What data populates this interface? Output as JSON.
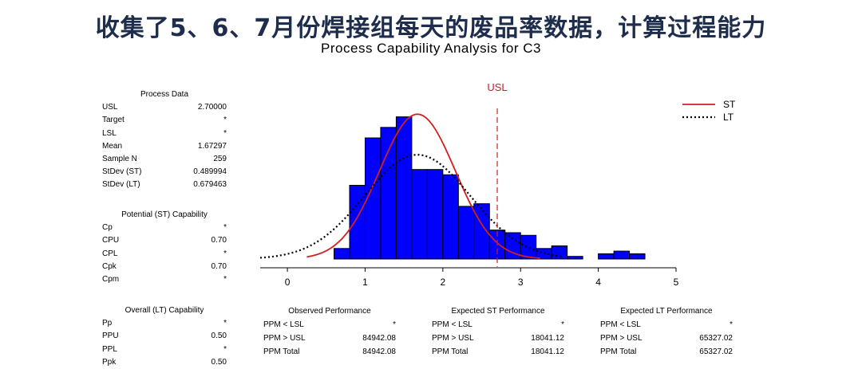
{
  "headline": "收集了5、6、7月份焊接组每天的废品率数据，计算过程能力",
  "chart_title": "Process Capability Analysis for C3",
  "colors": {
    "bar": "#0000ff",
    "bar_edge": "#000000",
    "st_curve": "#d22020",
    "usl_line": "#d22020",
    "usl_label": "#c02030",
    "lt_curve": "#000000"
  },
  "process_data": {
    "title": "Process Data",
    "rows": [
      {
        "label": "USL",
        "value": "2.70000"
      },
      {
        "label": "Target",
        "value": "*"
      },
      {
        "label": "LSL",
        "value": "*"
      },
      {
        "label": "Mean",
        "value": "1.67297"
      },
      {
        "label": "Sample N",
        "value": "259"
      },
      {
        "label": "StDev (ST)",
        "value": "0.489994"
      },
      {
        "label": "StDev (LT)",
        "value": "0.679463"
      }
    ]
  },
  "potential_capability": {
    "title": "Potential (ST) Capability",
    "rows": [
      {
        "label": "Cp",
        "value": "*"
      },
      {
        "label": "CPU",
        "value": "0.70"
      },
      {
        "label": "CPL",
        "value": "*"
      },
      {
        "label": "Cpk",
        "value": "0.70"
      },
      {
        "label": "Cpm",
        "value": "*"
      }
    ]
  },
  "overall_capability": {
    "title": "Overall (LT) Capability",
    "rows": [
      {
        "label": "Pp",
        "value": "*"
      },
      {
        "label": "PPU",
        "value": "0.50"
      },
      {
        "label": "PPL",
        "value": "*"
      },
      {
        "label": "Ppk",
        "value": "0.50"
      }
    ]
  },
  "observed_performance": {
    "title": "Observed Performance",
    "rows": [
      {
        "label": "PPM < LSL",
        "value": "*"
      },
      {
        "label": "PPM > USL",
        "value": "84942.08"
      },
      {
        "label": "PPM Total",
        "value": "84942.08"
      }
    ]
  },
  "expected_st_performance": {
    "title": "Expected ST Performance",
    "rows": [
      {
        "label": "PPM < LSL",
        "value": "*"
      },
      {
        "label": "PPM > USL",
        "value": "18041.12"
      },
      {
        "label": "PPM Total",
        "value": "18041.12"
      }
    ]
  },
  "expected_lt_performance": {
    "title": "Expected LT Performance",
    "rows": [
      {
        "label": "PPM < LSL",
        "value": "*"
      },
      {
        "label": "PPM > USL",
        "value": "65327.02"
      },
      {
        "label": "PPM Total",
        "value": "65327.02"
      }
    ]
  },
  "chart_data": {
    "type": "histogram",
    "title": "Process Capability Analysis for C3",
    "xlim": [
      -0.35,
      5
    ],
    "ylim": [
      0,
      28
    ],
    "x_ticks": [
      0,
      1,
      2,
      3,
      4,
      5
    ],
    "bins": [
      {
        "x0": 0.6,
        "x1": 0.8,
        "count": 2
      },
      {
        "x0": 0.8,
        "x1": 1.0,
        "count": 14
      },
      {
        "x0": 1.0,
        "x1": 1.2,
        "count": 23
      },
      {
        "x0": 1.2,
        "x1": 1.4,
        "count": 25
      },
      {
        "x0": 1.4,
        "x1": 1.6,
        "count": 27
      },
      {
        "x0": 1.6,
        "x1": 1.8,
        "count": 17
      },
      {
        "x0": 1.8,
        "x1": 2.0,
        "count": 17
      },
      {
        "x0": 2.0,
        "x1": 2.2,
        "count": 16
      },
      {
        "x0": 2.2,
        "x1": 2.4,
        "count": 10
      },
      {
        "x0": 2.4,
        "x1": 2.6,
        "count": 10.5
      },
      {
        "x0": 2.6,
        "x1": 2.8,
        "count": 5.5
      },
      {
        "x0": 2.8,
        "x1": 3.0,
        "count": 5
      },
      {
        "x0": 3.0,
        "x1": 3.2,
        "count": 4.5
      },
      {
        "x0": 3.2,
        "x1": 3.4,
        "count": 2
      },
      {
        "x0": 3.4,
        "x1": 3.6,
        "count": 2.5
      },
      {
        "x0": 3.6,
        "x1": 3.8,
        "count": 0.5
      },
      {
        "x0": 3.8,
        "x1": 4.0,
        "count": 0
      },
      {
        "x0": 4.0,
        "x1": 4.2,
        "count": 1
      },
      {
        "x0": 4.2,
        "x1": 4.4,
        "count": 1.5
      },
      {
        "x0": 4.4,
        "x1": 4.6,
        "count": 1
      }
    ],
    "usl": 2.7,
    "usl_label": "USL",
    "series": [
      {
        "name": "ST",
        "style": "solid",
        "mean": 1.67297,
        "stdev": 0.489994,
        "peak": 27.5,
        "x_range": [
          0.25,
          3.25
        ]
      },
      {
        "name": "LT",
        "style": "dotted",
        "mean": 1.67297,
        "stdev": 0.679463,
        "peak": 19.8,
        "x_range": [
          -0.35,
          3.55
        ]
      }
    ],
    "legend_position": "top-right"
  }
}
